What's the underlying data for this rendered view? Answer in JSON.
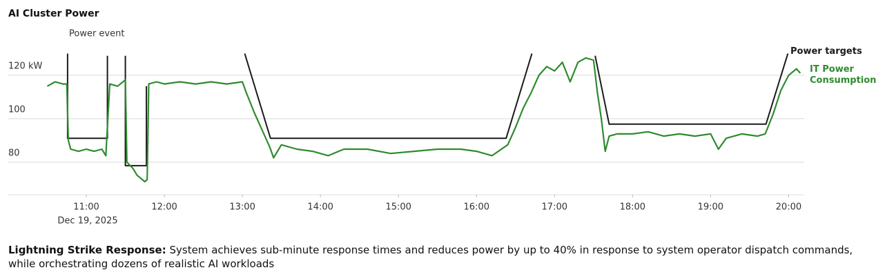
{
  "chart_data": {
    "type": "line",
    "title": "AI Cluster Power",
    "annotation": "Power event",
    "date_label": "Dec 19, 2025",
    "caption": {
      "lead": "Lightning Strike Response:",
      "text": "System achieves sub-minute response times and reduces power by up to 40% in response to system operator dispatch commands, while orchestrating dozens of realistic AI workloads"
    },
    "xlim": [
      10,
      20.2
    ],
    "ylim": [
      65,
      134
    ],
    "xticks": [
      {
        "value": 11,
        "label": "11:00"
      },
      {
        "value": 12,
        "label": "12:00"
      },
      {
        "value": 13,
        "label": "13:00"
      },
      {
        "value": 14,
        "label": "14:00"
      },
      {
        "value": 15,
        "label": "15:00"
      },
      {
        "value": 16,
        "label": "16:00"
      },
      {
        "value": 17,
        "label": "17:00"
      },
      {
        "value": 18,
        "label": "18:00"
      },
      {
        "value": 19,
        "label": "19:00"
      },
      {
        "value": 20,
        "label": "20:00"
      }
    ],
    "yticks": [
      80,
      100,
      {
        "value": 120,
        "label": "120 kW"
      }
    ],
    "grid": true,
    "series": [
      {
        "name": "Power targets",
        "color": "#1a1a1a",
        "x": [
          10.76,
          10.76,
          11.27,
          11.27,
          null,
          11.5,
          11.5,
          11.77,
          11.77,
          null,
          13.03,
          13.36,
          16.38,
          16.71,
          null,
          17.52,
          17.7,
          19.71,
          19.99
        ],
        "values": [
          130,
          91,
          91,
          129,
          null,
          129,
          78.4,
          78.4,
          115,
          null,
          130,
          91,
          91,
          130,
          null,
          129,
          97.5,
          97.5,
          130
        ]
      },
      {
        "name": "IT Power Consumption",
        "color": "#2e8b2e",
        "x": [
          10.5,
          10.6,
          10.7,
          10.75,
          10.77,
          10.8,
          10.9,
          11.0,
          11.1,
          11.2,
          11.25,
          11.3,
          11.4,
          11.47,
          11.5,
          11.52,
          11.6,
          11.65,
          11.75,
          11.78,
          11.8,
          11.9,
          12.0,
          12.2,
          12.4,
          12.6,
          12.8,
          13.0,
          13.05,
          13.15,
          13.25,
          13.35,
          13.4,
          13.5,
          13.7,
          13.9,
          14.1,
          14.3,
          14.6,
          14.9,
          15.2,
          15.5,
          15.8,
          16.0,
          16.2,
          16.4,
          16.5,
          16.6,
          16.7,
          16.8,
          16.9,
          17.0,
          17.1,
          17.2,
          17.3,
          17.4,
          17.5,
          17.55,
          17.6,
          17.65,
          17.7,
          17.8,
          18.0,
          18.2,
          18.4,
          18.6,
          18.8,
          19.0,
          19.1,
          19.2,
          19.4,
          19.6,
          19.7,
          19.8,
          19.9,
          20.0,
          20.1,
          20.15
        ],
        "values": [
          115,
          117,
          116,
          116,
          90,
          86,
          85,
          86,
          85,
          86,
          83,
          116,
          115,
          117,
          118,
          80,
          77,
          74,
          71,
          72,
          116,
          117,
          116,
          117,
          116,
          117,
          116,
          117,
          112,
          103,
          95,
          87,
          82,
          88,
          86,
          85,
          83,
          86,
          86,
          84,
          85,
          86,
          86,
          85,
          83,
          88,
          96,
          105,
          112,
          120,
          124,
          122,
          126,
          117,
          126,
          128,
          127,
          112,
          100,
          85,
          92,
          93,
          93,
          94,
          92,
          93,
          92,
          93,
          86,
          91,
          93,
          92,
          93,
          102,
          113,
          120,
          123,
          121
        ]
      }
    ]
  }
}
